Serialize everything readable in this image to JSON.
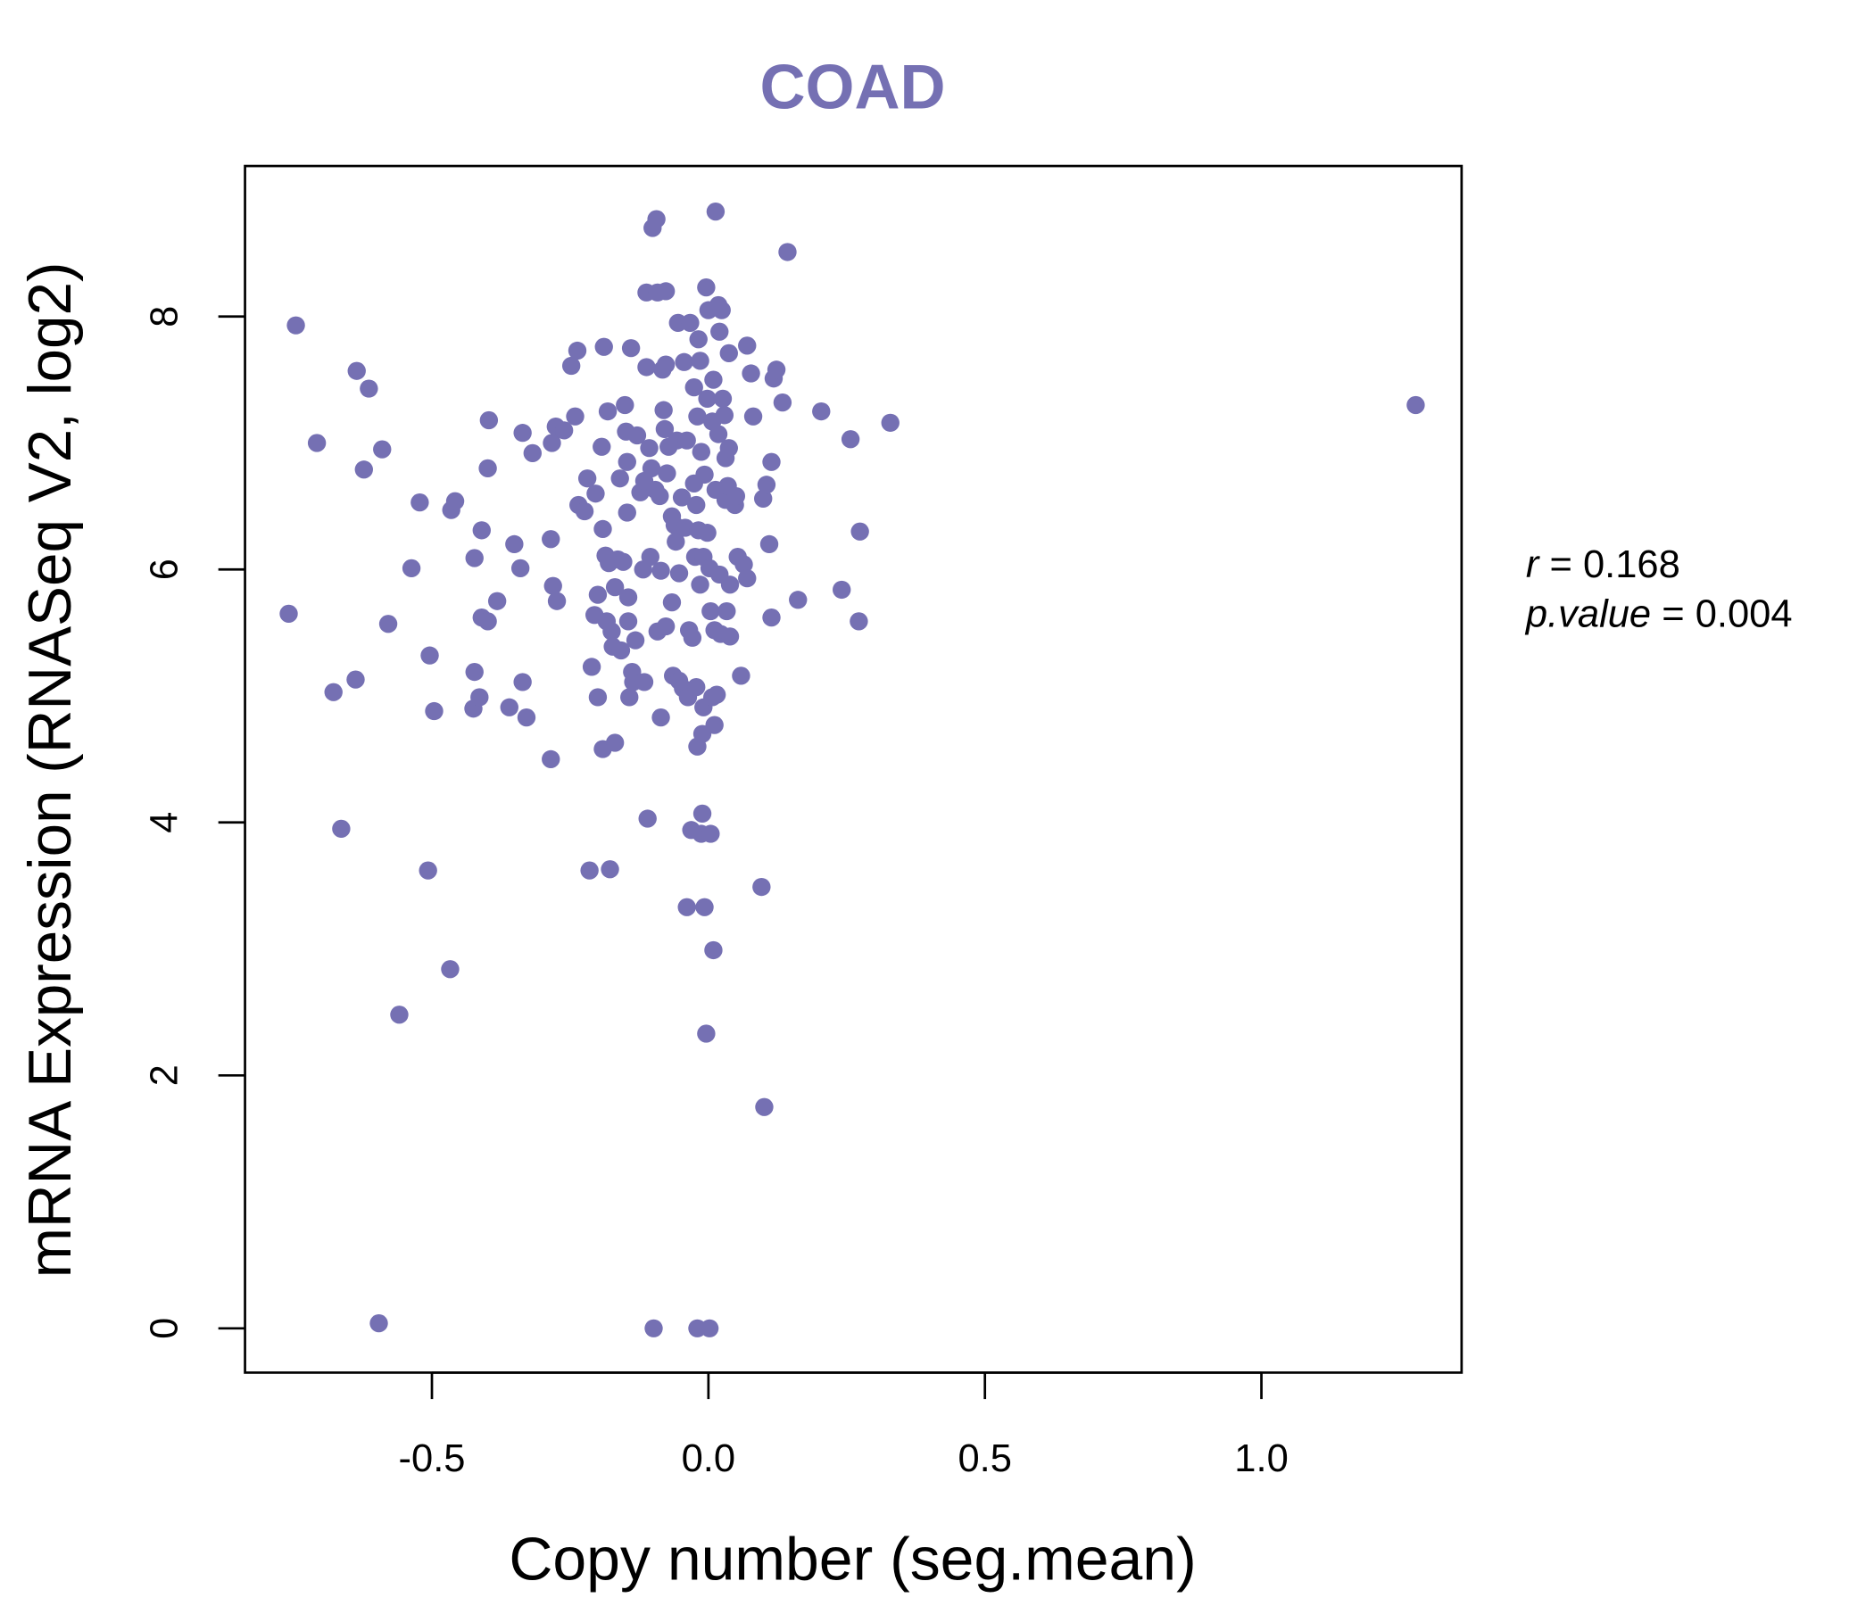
{
  "chart_data": {
    "type": "scatter",
    "title": "COAD",
    "xlabel": "Copy number (seg.mean)",
    "ylabel": "mRNA Expression (RNASeq V2, log2)",
    "xlim": [
      -0.838,
      1.362
    ],
    "ylim": [
      -0.35,
      9.19
    ],
    "xticks": [
      {
        "v": -0.5,
        "label": "-0.5"
      },
      {
        "v": 0,
        "label": "0.0"
      },
      {
        "v": 0.5,
        "label": "0.5"
      },
      {
        "v": 1.0,
        "label": "1.0"
      }
    ],
    "yticks": [
      {
        "v": 0,
        "label": "0"
      },
      {
        "v": 2,
        "label": "2"
      },
      {
        "v": 4,
        "label": "4"
      },
      {
        "v": 6,
        "label": "6"
      },
      {
        "v": 8,
        "label": "8"
      }
    ],
    "grid": false,
    "point_color": "#7570b3",
    "stats": {
      "r_label": "r",
      "r_value": "0.168",
      "p_label": "p.value",
      "p_value": "0.004",
      "eq": "="
    },
    "points": [
      [
        -0.746,
        7.93
      ],
      [
        -0.759,
        5.65
      ],
      [
        -0.708,
        7.0
      ],
      [
        -0.678,
        5.03
      ],
      [
        -0.664,
        3.95
      ],
      [
        -0.638,
        5.13
      ],
      [
        -0.636,
        7.57
      ],
      [
        -0.623,
        6.79
      ],
      [
        -0.614,
        7.43
      ],
      [
        -0.596,
        0.04
      ],
      [
        -0.59,
        6.95
      ],
      [
        -0.579,
        5.57
      ],
      [
        -0.559,
        2.48
      ],
      [
        -0.537,
        6.01
      ],
      [
        -0.522,
        6.53
      ],
      [
        -0.507,
        3.62
      ],
      [
        -0.504,
        5.32
      ],
      [
        -0.496,
        4.88
      ],
      [
        -0.467,
        2.84
      ],
      [
        -0.465,
        6.47
      ],
      [
        -0.458,
        6.54
      ],
      [
        -0.425,
        4.9
      ],
      [
        -0.423,
        5.19
      ],
      [
        -0.423,
        6.09
      ],
      [
        -0.414,
        4.99
      ],
      [
        -0.41,
        6.31
      ],
      [
        -0.41,
        5.62
      ],
      [
        -0.399,
        5.59
      ],
      [
        -0.399,
        6.8
      ],
      [
        -0.397,
        7.18
      ],
      [
        -0.382,
        5.75
      ],
      [
        -0.36,
        4.91
      ],
      [
        -0.351,
        6.2
      ],
      [
        -0.34,
        6.01
      ],
      [
        -0.336,
        5.11
      ],
      [
        -0.336,
        7.08
      ],
      [
        -0.329,
        4.83
      ],
      [
        -0.318,
        6.92
      ],
      [
        -0.285,
        4.5
      ],
      [
        -0.285,
        6.24
      ],
      [
        -0.283,
        7.0
      ],
      [
        -0.281,
        5.87
      ],
      [
        -0.276,
        7.13
      ],
      [
        -0.274,
        5.75
      ],
      [
        -0.261,
        7.1
      ],
      [
        -0.248,
        7.61
      ],
      [
        -0.241,
        7.21
      ],
      [
        -0.237,
        7.73
      ],
      [
        -0.235,
        6.51
      ],
      [
        -0.224,
        6.46
      ],
      [
        -0.219,
        6.72
      ],
      [
        -0.215,
        3.62
      ],
      [
        -0.211,
        5.23
      ],
      [
        -0.206,
        5.64
      ],
      [
        -0.204,
        6.6
      ],
      [
        -0.2,
        4.99
      ],
      [
        -0.2,
        5.8
      ],
      [
        -0.193,
        6.97
      ],
      [
        -0.191,
        4.58
      ],
      [
        -0.191,
        6.32
      ],
      [
        -0.189,
        7.76
      ],
      [
        -0.186,
        6.11
      ],
      [
        -0.184,
        5.59
      ],
      [
        -0.182,
        7.25
      ],
      [
        -0.18,
        6.05
      ],
      [
        -0.178,
        3.63
      ],
      [
        -0.175,
        5.51
      ],
      [
        -0.173,
        5.39
      ],
      [
        -0.169,
        4.63
      ],
      [
        -0.169,
        5.86
      ],
      [
        -0.164,
        6.08
      ],
      [
        -0.16,
        6.72
      ],
      [
        -0.158,
        5.36
      ],
      [
        -0.154,
        6.06
      ],
      [
        -0.151,
        7.3
      ],
      [
        -0.149,
        7.09
      ],
      [
        -0.147,
        6.45
      ],
      [
        -0.147,
        6.85
      ],
      [
        -0.145,
        5.78
      ],
      [
        -0.145,
        5.59
      ],
      [
        -0.143,
        4.99
      ],
      [
        -0.14,
        7.75
      ],
      [
        -0.138,
        5.19
      ],
      [
        -0.136,
        5.11
      ],
      [
        -0.132,
        5.44
      ],
      [
        -0.129,
        7.06
      ],
      [
        -0.123,
        6.61
      ],
      [
        -0.118,
        6.0
      ],
      [
        -0.116,
        5.11
      ],
      [
        -0.116,
        6.7
      ],
      [
        -0.112,
        7.6
      ],
      [
        -0.112,
        8.19
      ],
      [
        -0.11,
        4.03
      ],
      [
        -0.107,
        6.96
      ],
      [
        -0.105,
        6.1
      ],
      [
        -0.103,
        6.8
      ],
      [
        -0.101,
        8.7
      ],
      [
        -0.099,
        0.0
      ],
      [
        -0.096,
        6.63
      ],
      [
        -0.094,
        8.77
      ],
      [
        -0.092,
        5.51
      ],
      [
        -0.092,
        8.19
      ],
      [
        -0.088,
        6.58
      ],
      [
        -0.086,
        4.83
      ],
      [
        -0.086,
        5.99
      ],
      [
        -0.083,
        7.58
      ],
      [
        -0.081,
        7.26
      ],
      [
        -0.079,
        7.11
      ],
      [
        -0.077,
        8.2
      ],
      [
        -0.077,
        7.62
      ],
      [
        -0.077,
        5.55
      ],
      [
        -0.075,
        6.76
      ],
      [
        -0.072,
        6.97
      ],
      [
        -0.066,
        5.74
      ],
      [
        -0.066,
        6.42
      ],
      [
        -0.064,
        5.16
      ],
      [
        -0.061,
        6.35
      ],
      [
        -0.059,
        6.22
      ],
      [
        -0.057,
        7.02
      ],
      [
        -0.055,
        7.95
      ],
      [
        -0.053,
        5.12
      ],
      [
        -0.053,
        5.97
      ],
      [
        -0.048,
        6.57
      ],
      [
        -0.046,
        5.06
      ],
      [
        -0.044,
        7.64
      ],
      [
        -0.042,
        6.33
      ],
      [
        -0.039,
        3.33
      ],
      [
        -0.039,
        7.02
      ],
      [
        -0.037,
        4.99
      ],
      [
        -0.035,
        5.52
      ],
      [
        -0.033,
        7.95
      ],
      [
        -0.031,
        3.94
      ],
      [
        -0.029,
        5.46
      ],
      [
        -0.026,
        7.44
      ],
      [
        -0.026,
        6.68
      ],
      [
        -0.024,
        6.1
      ],
      [
        -0.022,
        5.07
      ],
      [
        -0.022,
        6.51
      ],
      [
        -0.02,
        4.6
      ],
      [
        -0.02,
        0.0
      ],
      [
        -0.02,
        7.21
      ],
      [
        -0.018,
        7.82
      ],
      [
        -0.018,
        6.31
      ],
      [
        -0.015,
        7.65
      ],
      [
        -0.015,
        5.88
      ],
      [
        -0.013,
        3.91
      ],
      [
        -0.013,
        6.93
      ],
      [
        -0.011,
        4.07
      ],
      [
        -0.011,
        4.7
      ],
      [
        -0.009,
        4.91
      ],
      [
        -0.009,
        6.1
      ],
      [
        -0.007,
        3.33
      ],
      [
        -0.007,
        6.75
      ],
      [
        -0.004,
        2.33
      ],
      [
        -0.004,
        8.23
      ],
      [
        -0.002,
        7.35
      ],
      [
        -0.002,
        6.29
      ],
      [
        0.0,
        8.05
      ],
      [
        0.002,
        0.0
      ],
      [
        0.002,
        6.01
      ],
      [
        0.004,
        3.91
      ],
      [
        0.004,
        5.67
      ],
      [
        0.007,
        7.17
      ],
      [
        0.007,
        4.99
      ],
      [
        0.009,
        2.99
      ],
      [
        0.009,
        7.5
      ],
      [
        0.011,
        4.77
      ],
      [
        0.011,
        5.52
      ],
      [
        0.013,
        6.63
      ],
      [
        0.013,
        8.83
      ],
      [
        0.015,
        5.01
      ],
      [
        0.018,
        7.07
      ],
      [
        0.018,
        8.09
      ],
      [
        0.02,
        5.96
      ],
      [
        0.02,
        7.88
      ],
      [
        0.022,
        5.49
      ],
      [
        0.024,
        8.05
      ],
      [
        0.026,
        7.35
      ],
      [
        0.029,
        7.22
      ],
      [
        0.031,
        6.55
      ],
      [
        0.031,
        6.88
      ],
      [
        0.033,
        5.67
      ],
      [
        0.035,
        6.66
      ],
      [
        0.037,
        7.71
      ],
      [
        0.037,
        6.96
      ],
      [
        0.039,
        5.47
      ],
      [
        0.039,
        5.88
      ],
      [
        0.048,
        6.51
      ],
      [
        0.05,
        6.58
      ],
      [
        0.053,
        6.1
      ],
      [
        0.059,
        5.16
      ],
      [
        0.064,
        6.04
      ],
      [
        0.07,
        5.93
      ],
      [
        0.07,
        7.77
      ],
      [
        0.077,
        7.55
      ],
      [
        0.081,
        7.21
      ],
      [
        0.096,
        3.49
      ],
      [
        0.099,
        6.56
      ],
      [
        0.101,
        1.75
      ],
      [
        0.105,
        6.67
      ],
      [
        0.11,
        6.2
      ],
      [
        0.114,
        5.62
      ],
      [
        0.114,
        6.85
      ],
      [
        0.118,
        7.51
      ],
      [
        0.123,
        7.58
      ],
      [
        0.134,
        7.32
      ],
      [
        0.143,
        8.51
      ],
      [
        0.162,
        5.76
      ],
      [
        0.204,
        7.25
      ],
      [
        0.241,
        5.84
      ],
      [
        0.257,
        7.03
      ],
      [
        0.272,
        5.59
      ],
      [
        0.274,
        6.3
      ],
      [
        0.329,
        7.16
      ],
      [
        1.279,
        7.3
      ]
    ]
  }
}
